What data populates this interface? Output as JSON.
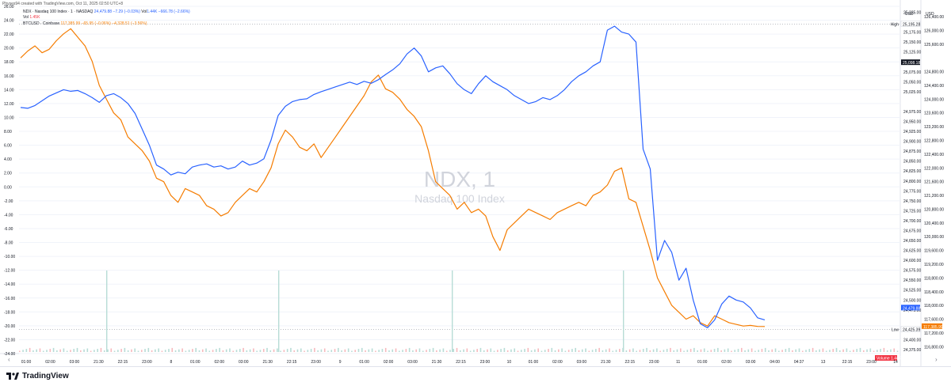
{
  "header": {
    "credit": "Physes94 created with TradingView.com, Oct 11, 2025 02:50 UTC+8",
    "ndx_name": "NDX · Nasdaq 100 Index · 1 · NASDAQ",
    "ndx_price": "24,479.88",
    "ndx_change": "−7.29 (−0.03%)",
    "ndx_vol_label": "Vol",
    "ndx_vol": "1.44K",
    "ndx_vol_change": "−666.78 (−2.66%)",
    "vol_label": "Vol",
    "vol_value": "1.45K",
    "btc_name": "BTCUSD · Coinbase",
    "btc_price": "117,385.99",
    "btc_change": "−65.95 (−0.06%)",
    "btc_change2": "−4,328.51 (−3.56%)"
  },
  "colors": {
    "ndx": "#2962ff",
    "btc": "#f57c00",
    "vol_up": "#b7dcd6",
    "vol_down": "#f7b9bd",
    "grid": "#f0f3fa",
    "axis_text": "#131722",
    "watermark": "#d1d4dc"
  },
  "watermark": {
    "title": "NDX, 1",
    "subtitle": "Nasdaq 100 Index"
  },
  "footer": {
    "brand": "TradingView"
  },
  "chart_data": {
    "type": "line",
    "left_axis": {
      "unit": "USD",
      "ticks": [
        "26.00",
        "24.00",
        "22.00",
        "20.00",
        "18.00",
        "16.00",
        "14.00",
        "12.00",
        "10.00",
        "8.00",
        "6.00",
        "4.00",
        "2.00",
        "0.00",
        "-2.00",
        "-4.00",
        "-6.00",
        "-8.00",
        "-10.00",
        "-12.00",
        "-14.00",
        "-16.00",
        "-18.00",
        "-20.00",
        "-22.00",
        "-24.00"
      ],
      "range": [
        -24,
        26
      ]
    },
    "ndx_axis": {
      "unit": "USD",
      "ticks": [
        "25,225.00",
        "25,175.00",
        "25,150.00",
        "25,125.00",
        "25,075.00",
        "25,050.00",
        "25,025.00",
        "24,975.00",
        "24,950.00",
        "24,925.00",
        "24,900.00",
        "24,875.00",
        "24,850.00",
        "24,825.00",
        "24,800.00",
        "24,775.00",
        "24,750.00",
        "24,725.00",
        "24,700.00",
        "24,675.00",
        "24,650.00",
        "24,625.00",
        "24,600.00",
        "24,575.00",
        "24,550.00",
        "24,525.00",
        "24,500.00",
        "24,475.00",
        "24,400.00",
        "24,375.00"
      ],
      "range": [
        24365,
        25240
      ],
      "high_label": "High",
      "high_value": "25,195.28",
      "low_label": "Low",
      "low_value": "24,425.39",
      "current_value": "25,098.18",
      "last_value": "24,479.88"
    },
    "btc_axis": {
      "unit": "USD",
      "ticks": [
        "126,400.00",
        "126,000.00",
        "125,600.00",
        "124,800.00",
        "124,400.00",
        "124,000.00",
        "123,600.00",
        "123,200.00",
        "122,800.00",
        "122,400.00",
        "122,000.00",
        "121,600.00",
        "121,200.00",
        "120,800.00",
        "120,400.00",
        "120,000.00",
        "119,600.00",
        "119,200.00",
        "118,800.00",
        "118,400.00",
        "118,000.00",
        "117,600.00",
        "117,200.00",
        "116,800.00"
      ],
      "range": [
        116600,
        126700
      ],
      "last_value": "117,385.99"
    },
    "x_labels": [
      "01:00",
      "02:00",
      "03:00",
      "21:30",
      "22:15",
      "23:00",
      "8",
      "01:00",
      "02:00",
      "03:00",
      "21:30",
      "22:15",
      "23:00",
      "9",
      "01:00",
      "02:00",
      "03:00",
      "21:30",
      "22:15",
      "23:00",
      "10",
      "01:00",
      "02:00",
      "03:00",
      "21:30",
      "22:15",
      "23:00",
      "11",
      "01:00",
      "02:00",
      "03:00",
      "04:00",
      "04:37",
      "13",
      "22:15",
      "23:00",
      "14"
    ],
    "volume_label": "Volume",
    "volume_value": "1.44K",
    "series": [
      {
        "name": "NDX",
        "values": [
          24985,
          24983,
          24990,
          25002,
          25014,
          25022,
          25030,
          25026,
          25028,
          25020,
          25010,
          24998,
          25015,
          25020,
          25010,
          24995,
          24970,
          24930,
          24890,
          24840,
          24830,
          24815,
          24822,
          24818,
          24835,
          24840,
          24843,
          24835,
          24838,
          24830,
          24835,
          24850,
          24840,
          24845,
          24856,
          24903,
          24965,
          24988,
          25000,
          25005,
          25007,
          25018,
          25025,
          25031,
          25037,
          25043,
          25049,
          25043,
          25051,
          25046,
          25055,
          25068,
          25080,
          25095,
          25120,
          25135,
          25115,
          25075,
          25085,
          25090,
          25070,
          25045,
          25030,
          25020,
          25045,
          25065,
          25050,
          25040,
          25030,
          25015,
          25005,
          24995,
          25000,
          25010,
          25005,
          25015,
          25030,
          25050,
          25065,
          25075,
          25090,
          25100,
          25180,
          25190,
          25175,
          25170,
          25150,
          24880,
          24830,
          24600,
          24650,
          24620,
          24550,
          24580,
          24500,
          24440,
          24430,
          24450,
          24490,
          24510,
          24500,
          24495,
          24480,
          24455,
          24450
        ]
      },
      {
        "name": "BTCUSD",
        "values": [
          125200,
          125400,
          125550,
          125350,
          125450,
          125700,
          125900,
          126050,
          125800,
          125550,
          125100,
          124400,
          124000,
          123600,
          123400,
          122900,
          122700,
          122500,
          122200,
          121700,
          121600,
          121200,
          121000,
          121400,
          121300,
          121200,
          120900,
          120800,
          120600,
          120700,
          121000,
          121200,
          121400,
          121300,
          121600,
          122000,
          122700,
          123100,
          122900,
          122600,
          122500,
          122700,
          122300,
          122600,
          122900,
          123200,
          123500,
          123800,
          124100,
          124500,
          124700,
          124300,
          124200,
          124000,
          123700,
          123500,
          123200,
          122500,
          121600,
          121400,
          121200,
          120800,
          121000,
          120700,
          120800,
          120600,
          120000,
          119600,
          120200,
          120400,
          120600,
          120800,
          120700,
          120600,
          120500,
          120700,
          120800,
          120900,
          121000,
          120900,
          121200,
          121300,
          121500,
          121900,
          122000,
          121100,
          121000,
          120300,
          119600,
          118800,
          118400,
          118000,
          117800,
          117600,
          117700,
          117500,
          117400,
          117700,
          117600,
          117500,
          117450,
          117400,
          117420,
          117390,
          117386
        ]
      }
    ]
  }
}
